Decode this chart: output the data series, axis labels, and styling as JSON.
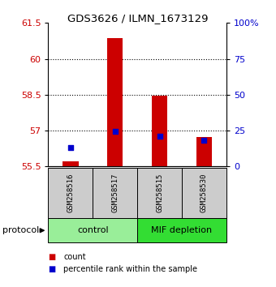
{
  "title": "GDS3626 / ILMN_1673129",
  "samples": [
    "GSM258516",
    "GSM258517",
    "GSM258515",
    "GSM258530"
  ],
  "groups": [
    {
      "name": "control",
      "indices": [
        0,
        1
      ],
      "color": "#99ee99"
    },
    {
      "name": "MIF depletion",
      "indices": [
        2,
        3
      ],
      "color": "#33dd33"
    }
  ],
  "ymin": 55.5,
  "ymax": 61.5,
  "yticks": [
    55.5,
    57.0,
    58.5,
    60.0,
    61.5
  ],
  "ytick_labels": [
    "55.5",
    "57",
    "58.5",
    "60",
    "61.5"
  ],
  "right_ytick_pcts": [
    0,
    25,
    50,
    75,
    100
  ],
  "right_ylabels": [
    "0",
    "25",
    "50",
    "75",
    "100%"
  ],
  "count_values": [
    55.72,
    60.85,
    58.47,
    56.72
  ],
  "percentile_values": [
    56.28,
    56.97,
    56.78,
    56.6
  ],
  "bar_color": "#cc0000",
  "dot_color": "#0000cc",
  "bar_width": 0.35,
  "grid_yticks": [
    57.0,
    58.5,
    60.0
  ],
  "sample_bg": "#cccccc",
  "left_label_color": "#cc0000",
  "right_label_color": "#0000cc",
  "legend_items": [
    {
      "color": "#cc0000",
      "label": "count"
    },
    {
      "color": "#0000cc",
      "label": "percentile rank within the sample"
    }
  ]
}
